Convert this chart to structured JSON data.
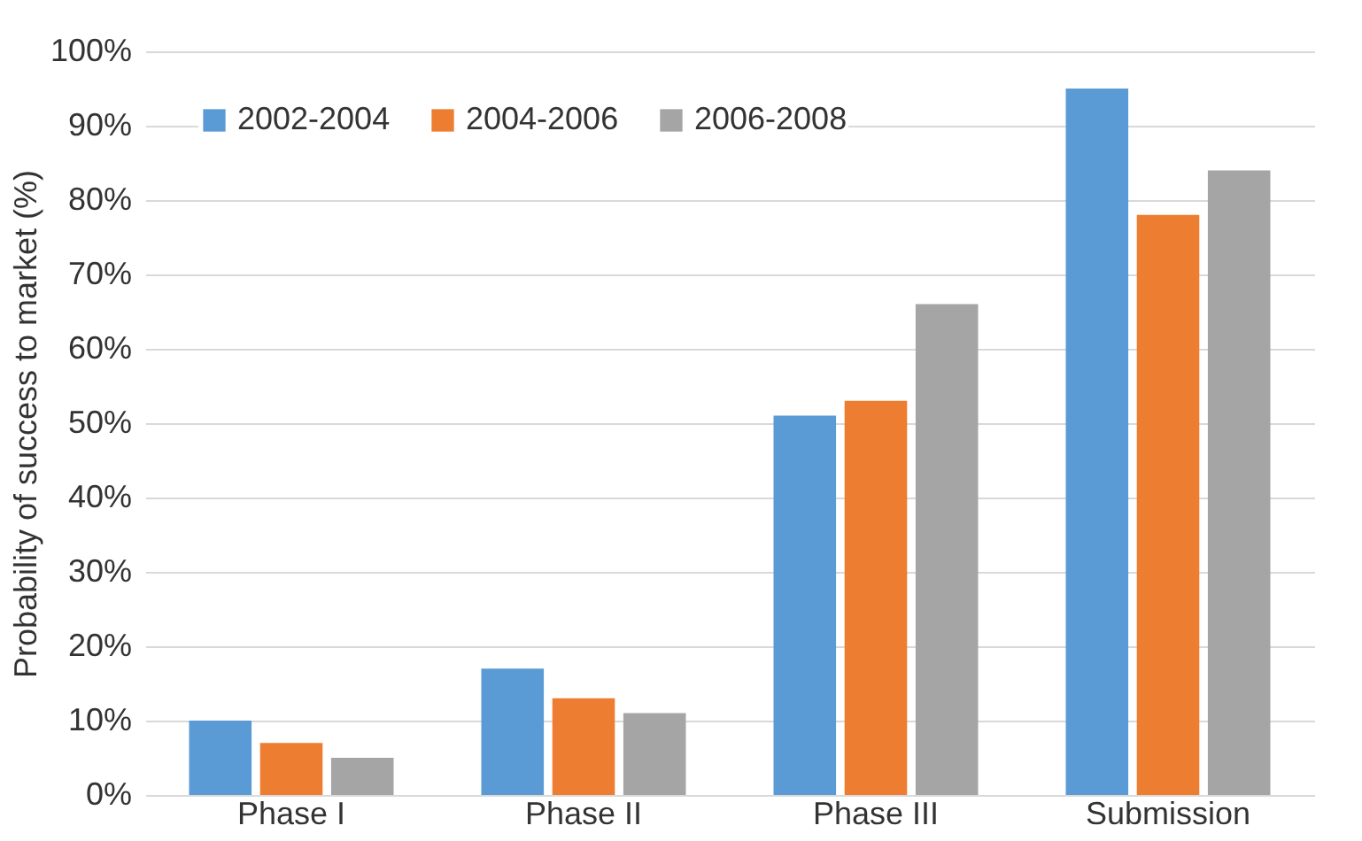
{
  "chart_data": {
    "type": "bar",
    "ylabel": "Probability of success to market (%)",
    "categories": [
      "Phase I",
      "Phase II",
      "Phase III",
      "Submission"
    ],
    "series": [
      {
        "name": "2002-2004",
        "color": "#5b9bd5",
        "values": [
          10,
          17,
          51,
          95
        ]
      },
      {
        "name": "2004-2006",
        "color": "#ed7d31",
        "values": [
          7,
          13,
          53,
          78
        ]
      },
      {
        "name": "2006-2008",
        "color": "#a5a5a5",
        "values": [
          5,
          11,
          66,
          84
        ]
      }
    ],
    "ylim": [
      0,
      100
    ],
    "yticks": [
      {
        "value": 0,
        "label": "0%"
      },
      {
        "value": 10,
        "label": "10%"
      },
      {
        "value": 20,
        "label": "20%"
      },
      {
        "value": 30,
        "label": "30%"
      },
      {
        "value": 40,
        "label": "40%"
      },
      {
        "value": 50,
        "label": "50%"
      },
      {
        "value": 60,
        "label": "60%"
      },
      {
        "value": 70,
        "label": "70%"
      },
      {
        "value": 80,
        "label": "80%"
      },
      {
        "value": 90,
        "label": "90%"
      },
      {
        "value": 100,
        "label": "100%"
      }
    ],
    "grid": "y",
    "legend": "top left"
  }
}
